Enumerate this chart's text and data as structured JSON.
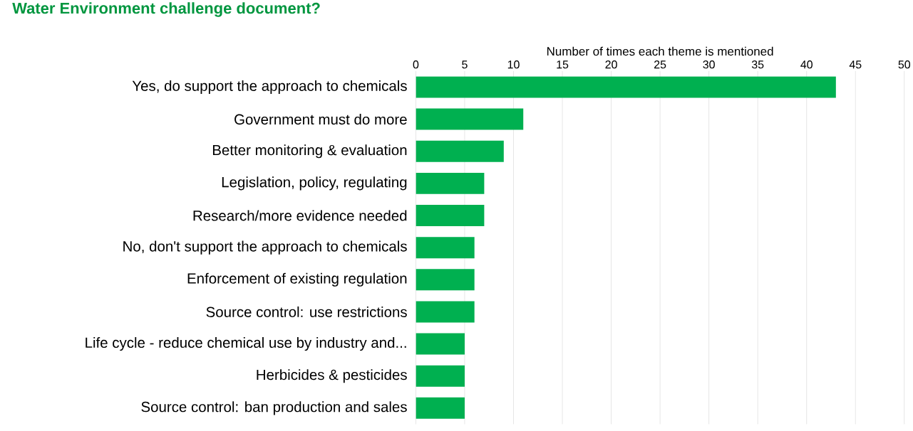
{
  "chart_data": {
    "type": "bar",
    "orientation": "horizontal",
    "title": "Water Environment challenge document?",
    "xlabel": "Number of times each theme is mentioned",
    "categories": [
      "Yes, do support the approach to chemicals",
      "Government must do more",
      "Better monitoring & evaluation",
      "Legislation, policy, regulating",
      "Research/more evidence needed",
      "No, don't support the approach to chemicals",
      "Enforcement of existing regulation",
      "Source control: use restrictions",
      "Life cycle - reduce chemical use by industry and...",
      "Herbicides & pesticides",
      "Source control: ban production and sales"
    ],
    "values": [
      43,
      11,
      9,
      7,
      7,
      6,
      6,
      6,
      5,
      5,
      5
    ],
    "color": "#00b050",
    "xlim": [
      0,
      50
    ],
    "xticks": [
      0,
      5,
      10,
      15,
      20,
      25,
      30,
      35,
      40,
      45,
      50
    ],
    "grid": "x"
  }
}
